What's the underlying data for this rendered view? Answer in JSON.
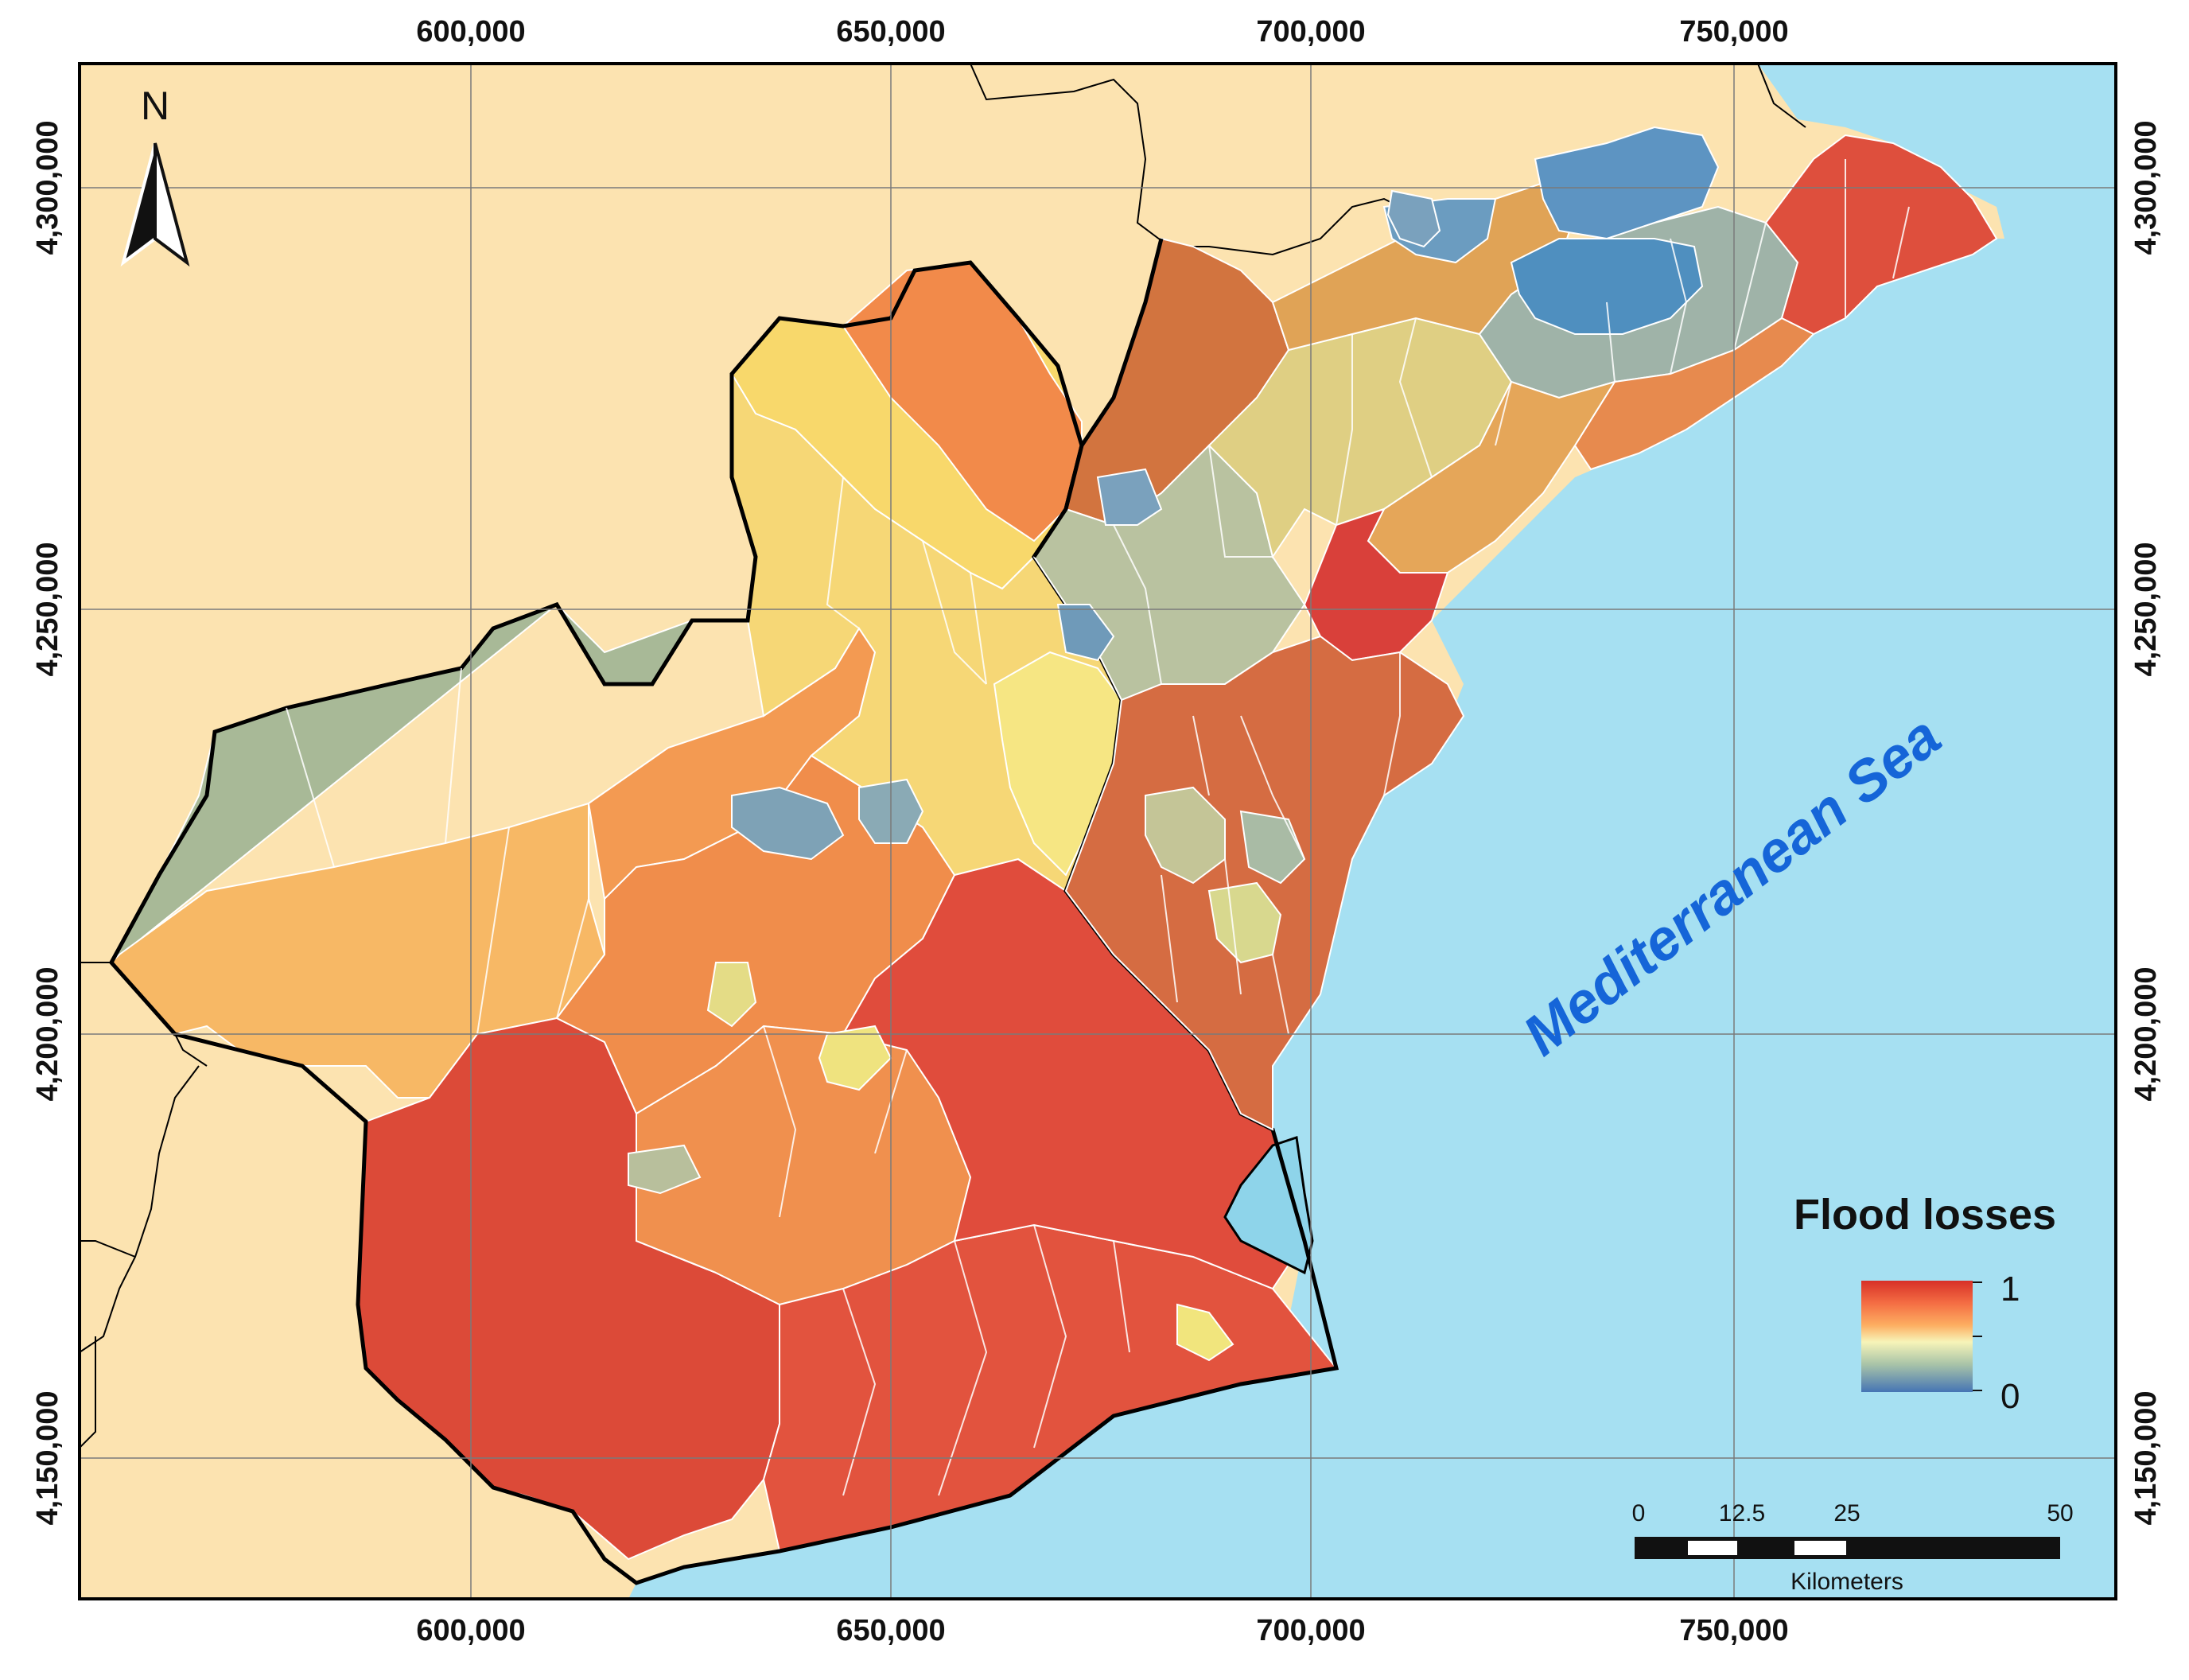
{
  "map": {
    "sea_label": "Mediterranean Sea",
    "north_arrow_letter": "N",
    "colors": {
      "land_background": "#fce3b0",
      "sea": "#a6e0f2",
      "region_high": "#d9473a",
      "region_low": "#4f8fbf",
      "region_mid": "#f2e690",
      "border": "#000000",
      "municipal_line": "#ffffff",
      "grid_line": "#7a7a7a"
    }
  },
  "axes": {
    "x_ticks": [
      "600,000",
      "650,000",
      "700,000",
      "750,000"
    ],
    "y_ticks": [
      "4,300,000",
      "4,250,000",
      "4,200,000",
      "4,150,000"
    ]
  },
  "legend": {
    "title": "Flood losses",
    "max_label": "1",
    "min_label": "0",
    "color_ramp": [
      "#d73027",
      "#f46d43",
      "#fdae61",
      "#f7f4b8",
      "#a9c4a8",
      "#4575b4"
    ]
  },
  "scale_bar": {
    "labels": [
      "0",
      "12.5",
      "25",
      "50"
    ],
    "units": "Kilometers"
  }
}
